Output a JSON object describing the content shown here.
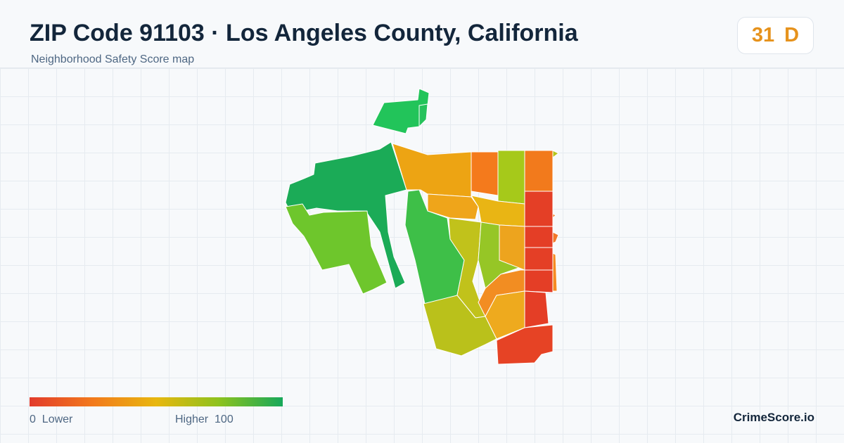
{
  "header": {
    "title": "ZIP Code 91103 · Los Angeles County, California",
    "subtitle": "Neighborhood Safety Score map"
  },
  "score": {
    "value": "31",
    "grade": "D",
    "color": "#e6921c"
  },
  "legend": {
    "min": "0",
    "min_label": "Lower",
    "max_label": "Higher",
    "max": "100",
    "colors": [
      "#e23b2b",
      "#f27a1c",
      "#e8b70f",
      "#8cc21e",
      "#17a85a"
    ]
  },
  "brand": "CrimeScore.io"
}
